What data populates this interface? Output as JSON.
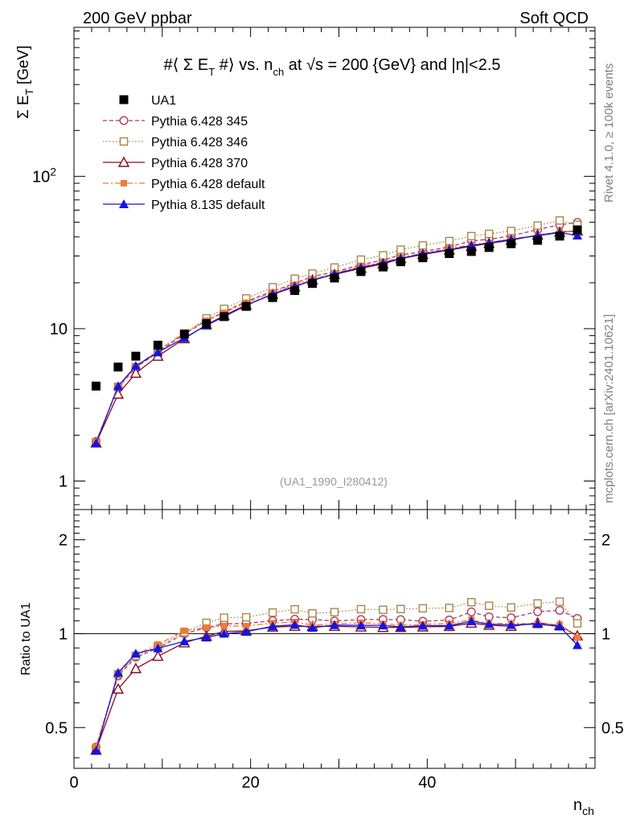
{
  "header": {
    "left": "200 GeV ppbar",
    "right": "Soft QCD"
  },
  "title": {
    "pre": "#⟨ Σ E",
    "sub1": "T",
    "mid1": " #⟩ vs. n",
    "sub2": "ch",
    "mid2": " at √s = 200 {GeV} and |η|<2.5"
  },
  "side_labels": {
    "rivet": "Rivet 4.1.0, ≥ 100k events",
    "mcplots": "mcplots.cern.ch [arXiv:2401.10621]"
  },
  "reference": "(UA1_1990_I280412)",
  "chart_data": [
    {
      "type": "scatter",
      "panel": "main",
      "ylabel_main": "Σ E",
      "ylabel_sub": "T",
      "ylabel_unit": " [GeV]",
      "yscale": "log",
      "ylim": [
        0.65,
        950
      ],
      "xlim": [
        0,
        59
      ],
      "yticks": [
        {
          "value": 1,
          "label": "1"
        },
        {
          "value": 10,
          "label": "10"
        },
        {
          "value": 100,
          "label": "10",
          "sup": "2"
        }
      ],
      "x": [
        2.5,
        5,
        7,
        9.5,
        12.5,
        15,
        17,
        19.5,
        22.5,
        25,
        27,
        29.5,
        32.5,
        35,
        37,
        39.5,
        42.5,
        45,
        47,
        49.5,
        52.5,
        55,
        57
      ],
      "series": [
        {
          "name": "UA1",
          "color": "#000000",
          "marker": "square-filled",
          "line": "none",
          "values": [
            4.2,
            5.6,
            6.6,
            7.8,
            9.2,
            10.8,
            12.0,
            14.0,
            16.0,
            17.8,
            19.8,
            21.5,
            23.7,
            25.4,
            27.5,
            29.2,
            31.1,
            32.1,
            34.1,
            36.1,
            38.0,
            40.5,
            44.5
          ]
        },
        {
          "name": "Pythia 6.428 345",
          "color": "#b23a5a",
          "marker": "circle-open",
          "line": "dashed",
          "values": [
            1.82,
            4.1,
            5.55,
            7.0,
            9.2,
            11.3,
            12.9,
            15.1,
            17.6,
            19.8,
            22.0,
            23.6,
            26.3,
            28.2,
            30.5,
            32.0,
            34.4,
            37.7,
            38.6,
            40.6,
            44.7,
            48.1,
            49.8
          ]
        },
        {
          "name": "Pythia 6.428 346",
          "color": "#a6864a",
          "marker": "square-open",
          "line": "dotted",
          "values": [
            1.8,
            4.15,
            5.6,
            7.1,
            9.3,
            11.7,
            13.5,
            15.8,
            18.7,
            21.3,
            23.0,
            25.2,
            28.4,
            30.3,
            33.0,
            35.2,
            37.6,
            40.5,
            41.9,
            43.8,
            47.5,
            51.3,
            48.0
          ]
        },
        {
          "name": "Pythia 6.428 370",
          "color": "#8b0a1a",
          "marker": "triangle-open",
          "line": "solid",
          "values": [
            1.78,
            3.72,
            5.1,
            6.6,
            8.6,
            10.6,
            12.2,
            14.3,
            16.8,
            18.8,
            20.9,
            22.7,
            24.9,
            26.6,
            28.8,
            30.7,
            32.8,
            34.7,
            36.3,
            38.1,
            41.2,
            43.0,
            43.8
          ]
        },
        {
          "name": "Pythia 6.428 default",
          "color": "#f07a3a",
          "marker": "square-filled-small",
          "line": "dashdot",
          "values": [
            1.83,
            4.15,
            5.65,
            7.2,
            9.4,
            11.3,
            12.7,
            14.8,
            17.3,
            19.4,
            21.1,
            23.1,
            25.7,
            27.3,
            29.3,
            31.3,
            33.5,
            35.6,
            36.6,
            39.0,
            40.8,
            43.3,
            43.2
          ]
        },
        {
          "name": "Pythia 8.135 default",
          "color": "#1515e0",
          "marker": "triangle-filled",
          "line": "solid",
          "values": [
            1.77,
            4.2,
            5.7,
            7.0,
            8.7,
            10.5,
            12.0,
            14.2,
            16.9,
            19.0,
            20.7,
            22.9,
            25.2,
            27.0,
            28.9,
            31.0,
            33.0,
            35.2,
            36.6,
            38.5,
            40.8,
            42.7,
            40.9
          ]
        }
      ]
    },
    {
      "type": "line",
      "panel": "ratio",
      "ylabel": "Ratio to UA1",
      "yscale": "log",
      "ylim": [
        0.37,
        2.5
      ],
      "xlim": [
        0,
        59
      ],
      "xlabel_main": "n",
      "xlabel_sub": "ch",
      "yticks": [
        {
          "value": 0.5,
          "label": "0.5"
        },
        {
          "value": 1,
          "label": "1"
        },
        {
          "value": 2,
          "label": "2"
        }
      ],
      "xticks": [
        {
          "value": 0,
          "label": "0"
        },
        {
          "value": 20,
          "label": "20"
        },
        {
          "value": 40,
          "label": "40"
        }
      ],
      "reference_line": 1
    }
  ]
}
